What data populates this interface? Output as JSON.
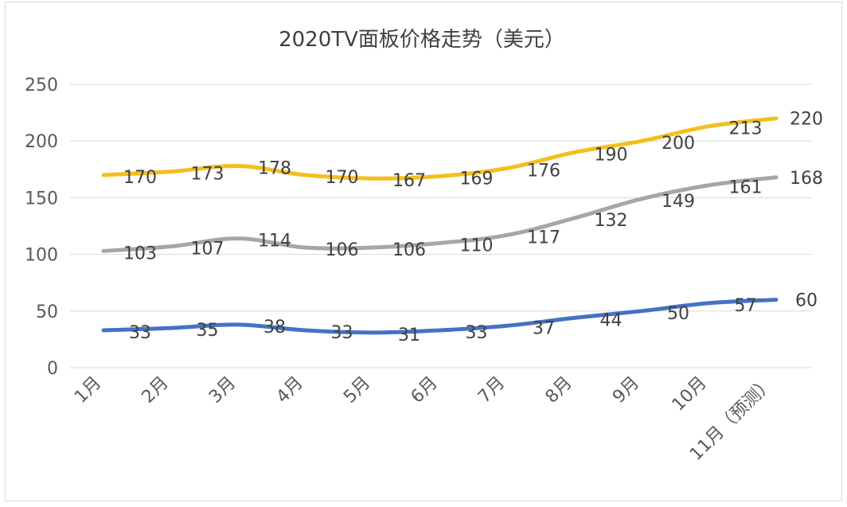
{
  "chart_data": {
    "type": "line",
    "title": "2020TV面板价格走势（美元）",
    "xlabel": "",
    "ylabel": "",
    "ylim": [
      0,
      250
    ],
    "yticks": [
      0,
      50,
      100,
      150,
      200,
      250
    ],
    "grid": true,
    "legend": "none",
    "categories": [
      "1月",
      "2月",
      "3月",
      "4月",
      "5月",
      "6月",
      "7月",
      "8月",
      "9月",
      "10月",
      "11月（预测）"
    ],
    "series": [
      {
        "color": "#f2c01e",
        "values": [
          170,
          173,
          178,
          170,
          167,
          169,
          176,
          190,
          200,
          213,
          220
        ]
      },
      {
        "color": "#a6a6a6",
        "values": [
          103,
          107,
          114,
          106,
          106,
          110,
          117,
          132,
          149,
          161,
          168
        ]
      },
      {
        "color": "#4472c4",
        "values": [
          33,
          35,
          38,
          33,
          31,
          33,
          37,
          44,
          50,
          57,
          60
        ]
      }
    ]
  }
}
